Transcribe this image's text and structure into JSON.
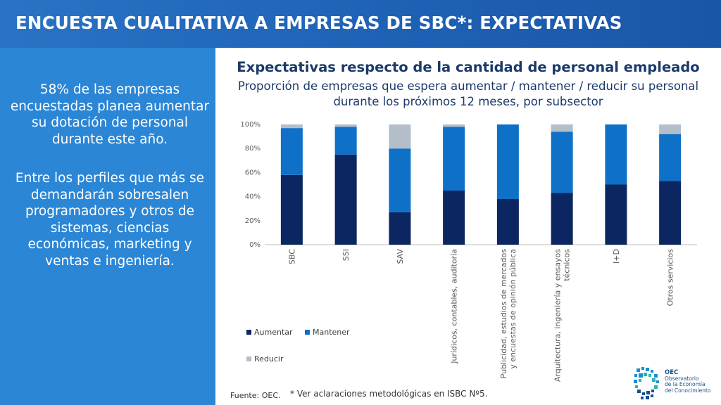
{
  "header": {
    "title": "ENCUESTA CUALITATIVA A EMPRESAS DE SBC*: EXPECTATIVAS"
  },
  "side": {
    "paragraph1": "58% de las empresas encuestadas planea aumentar su dotación de personal durante este año.",
    "paragraph2": "Entre los perfiles que más se demandarán sobresalen programadores y otros de sistemas, ciencias económicas, marketing y ventas e ingeniería."
  },
  "footer": {
    "source": "Fuente: OEC.",
    "note": "* Ver aclaraciones metodológicas en ISBC Nº5."
  },
  "logo": {
    "acronym": "OEC",
    "line1": "Observatorio",
    "line2": "de la Economía",
    "line3": "del Conocimiento"
  },
  "colors": {
    "header": "#1f63b6",
    "panel": "#2b86d6",
    "aumentar": "#0b2660",
    "mantener": "#0f70c7",
    "reducir": "#b3bec9"
  },
  "chart_data": {
    "type": "bar",
    "stacked": true,
    "title": "Expectativas respecto de la cantidad de personal empleado",
    "subtitle": "Proporción de empresas que espera aumentar / mantener / reducir su personal durante los próximos 12 meses, por subsector",
    "categories": [
      [
        "SBC"
      ],
      [
        "SSI"
      ],
      [
        "SAV"
      ],
      [
        "Jurídicos, contables, auditoría"
      ],
      [
        "Publicidad, estudios de mercados",
        "y encuestas de opinión pública"
      ],
      [
        "Arquitectura, ingeniería y ensayos",
        "técnicos"
      ],
      [
        "I+D"
      ],
      [
        "Otros servicios"
      ]
    ],
    "series": [
      {
        "name": "Aumentar",
        "color": "#0b2660",
        "values": [
          58,
          75,
          27,
          45,
          38,
          43,
          50,
          53
        ]
      },
      {
        "name": "Mantener",
        "color": "#0f70c7",
        "values": [
          39,
          23,
          53,
          53,
          62,
          51,
          50,
          39
        ]
      },
      {
        "name": "Reducir",
        "color": "#b3bec9",
        "values": [
          3,
          2,
          20,
          2,
          0,
          6,
          0,
          8
        ]
      }
    ],
    "ylim": [
      0,
      100
    ],
    "yticks": [
      "0%",
      "20%",
      "40%",
      "60%",
      "80%",
      "100%"
    ],
    "yticks_values": [
      0,
      20,
      40,
      60,
      80,
      100
    ],
    "grid": false,
    "legend_position": "bottom-left"
  }
}
